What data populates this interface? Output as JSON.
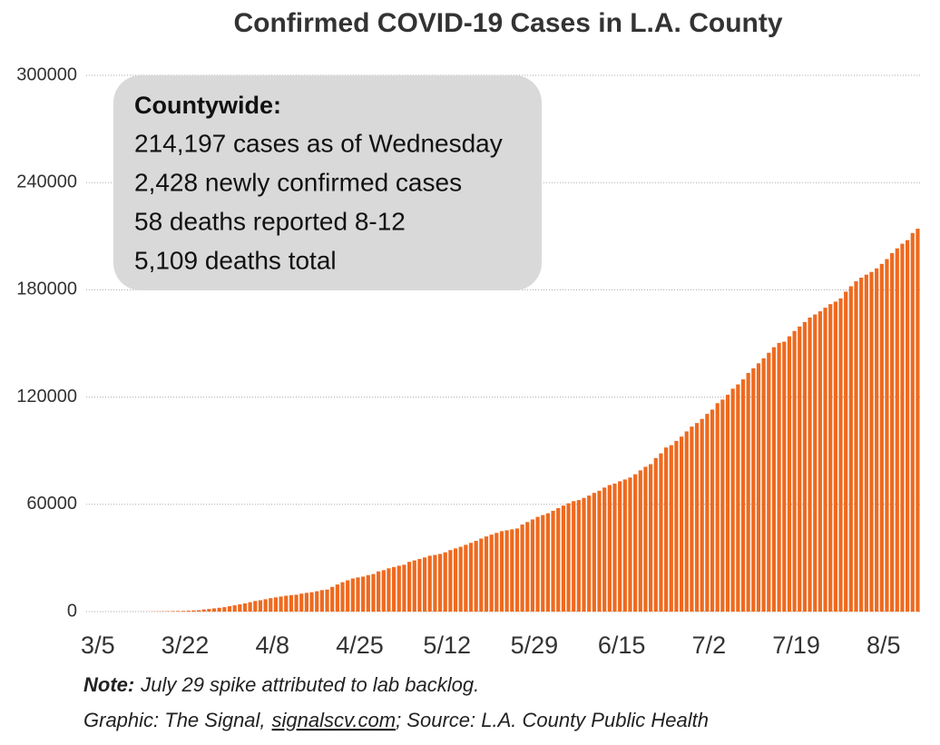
{
  "chart_data": {
    "type": "bar",
    "title": "Confirmed COVID-19 Cases in L.A. County",
    "categories": [
      "3/5",
      null,
      null,
      null,
      null,
      null,
      null,
      null,
      null,
      null,
      null,
      null,
      null,
      null,
      null,
      null,
      null,
      "3/22",
      null,
      null,
      null,
      null,
      null,
      null,
      null,
      null,
      null,
      null,
      null,
      null,
      null,
      null,
      null,
      null,
      "4/8",
      null,
      null,
      null,
      null,
      null,
      null,
      null,
      null,
      null,
      null,
      null,
      null,
      null,
      null,
      null,
      null,
      "4/25",
      null,
      null,
      null,
      null,
      null,
      null,
      null,
      null,
      null,
      null,
      null,
      null,
      null,
      null,
      null,
      null,
      "5/12",
      null,
      null,
      null,
      null,
      null,
      null,
      null,
      null,
      null,
      null,
      null,
      null,
      null,
      null,
      null,
      null,
      "5/29",
      null,
      null,
      null,
      null,
      null,
      null,
      null,
      null,
      null,
      null,
      null,
      null,
      null,
      null,
      null,
      null,
      "6/15",
      null,
      null,
      null,
      null,
      null,
      null,
      null,
      null,
      null,
      null,
      null,
      null,
      null,
      null,
      null,
      null,
      "7/2",
      null,
      null,
      null,
      null,
      null,
      null,
      null,
      null,
      null,
      null,
      null,
      null,
      null,
      null,
      null,
      null,
      "7/19",
      null,
      null,
      null,
      null,
      null,
      null,
      null,
      null,
      null,
      null,
      null,
      null,
      null,
      null,
      null,
      null,
      "8/5",
      null,
      null,
      null,
      null,
      null,
      null,
      null
    ],
    "values": [
      7,
      11,
      13,
      14,
      16,
      19,
      27,
      32,
      40,
      53,
      69,
      94,
      144,
      190,
      231,
      292,
      351,
      409,
      536,
      662,
      799,
      1216,
      1465,
      1804,
      2136,
      2474,
      3011,
      3518,
      4045,
      4566,
      5277,
      5940,
      6360,
      6910,
      7530,
      7955,
      8430,
      8873,
      9192,
      9420,
      10047,
      10496,
      10854,
      11391,
      12021,
      12341,
      13816,
      15153,
      16435,
      17508,
      18517,
      19133,
      19567,
      20417,
      21017,
      22485,
      23182,
      24215,
      24894,
      25662,
      26217,
      27815,
      28644,
      29427,
      30296,
      31241,
      31703,
      32258,
      33180,
      34428,
      35329,
      36259,
      37374,
      38451,
      39573,
      40857,
      42037,
      43052,
      44018,
      44988,
      45502,
      46018,
      46500,
      48700,
      50100,
      51562,
      53000,
      54000,
      55000,
      56400,
      57900,
      59300,
      60600,
      61800,
      62400,
      63600,
      64900,
      66400,
      67600,
      69400,
      70800,
      71600,
      72900,
      73900,
      75000,
      76800,
      79000,
      81000,
      82500,
      85900,
      88500,
      91800,
      93100,
      95500,
      97900,
      100800,
      103500,
      105500,
      107800,
      110600,
      113000,
      116600,
      118600,
      121300,
      124700,
      127100,
      129900,
      133500,
      136100,
      138900,
      141700,
      144800,
      147900,
      150300,
      151000,
      154000,
      157000,
      159500,
      162000,
      164500,
      166200,
      168000,
      170000,
      172000,
      173400,
      175200,
      179000,
      182000,
      184800,
      186800,
      188500,
      190000,
      192000,
      194500,
      197200,
      200500,
      203200,
      205800,
      207800,
      211800,
      214197
    ],
    "color": "#ee6a1f",
    "ylim": [
      0,
      300000
    ],
    "yticks": [
      0,
      60000,
      120000,
      180000,
      240000,
      300000
    ],
    "grid": true,
    "annotation": {
      "title": "Countywide:",
      "lines": [
        "214,197 cases as of Wednesday",
        "2,428 newly confirmed cases",
        "58 deaths reported 8-12",
        "5,109 deaths total"
      ]
    },
    "note": {
      "label": "Note:",
      "text": "July 29 spike attributed to lab backlog."
    },
    "source": {
      "prefix": "Graphic: The Signal,",
      "link": "signalscv.com",
      "suffix": "; Source: L.A. County Public Health"
    }
  }
}
